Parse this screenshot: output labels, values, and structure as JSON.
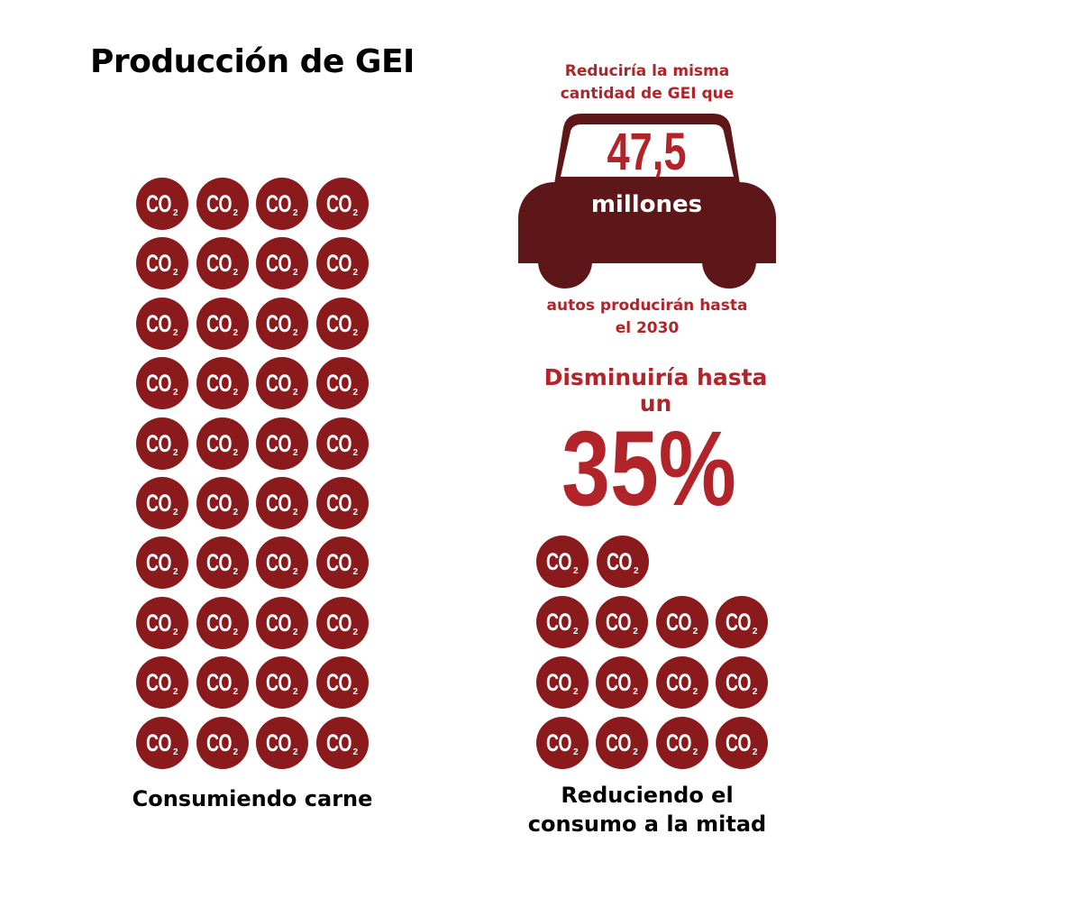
{
  "title": "Producción de GEI",
  "icon": {
    "name": "co2-icon",
    "label": "CO",
    "subscript": "2",
    "color": "#8b1a1c"
  },
  "car_panel": {
    "top_text_line1": "Reduciría la misma",
    "top_text_line2": "cantidad de GEI que",
    "number": "47,5",
    "unit": "millones",
    "bottom_text_line1": "autos producirán hasta",
    "bottom_text_line2": "el 2030",
    "car_color": "#5e1719",
    "accent_color": "#b12429"
  },
  "reduction": {
    "lead": "Disminuiría hasta un",
    "percent": "35%"
  },
  "left_group": {
    "caption": "Consumiendo carne",
    "icon_count": 40,
    "columns": 4
  },
  "right_group": {
    "caption_line1": "Reduciendo el",
    "caption_line2": "consumo a la mitad",
    "icon_count": 14
  }
}
